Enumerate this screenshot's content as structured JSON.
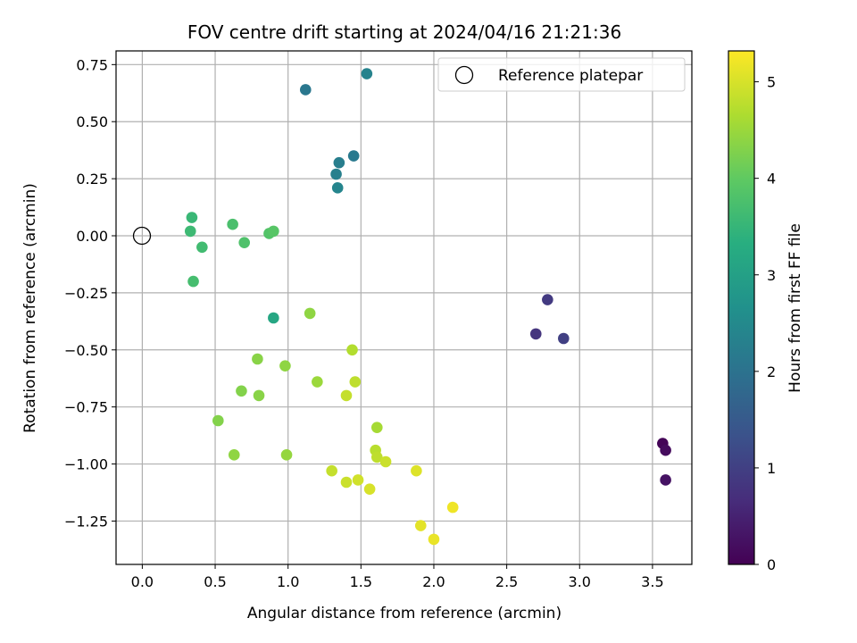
{
  "chart_data": {
    "type": "scatter",
    "title": "FOV centre drift starting at 2024/04/16 21:21:36",
    "xlabel": "Angular distance from reference (arcmin)",
    "ylabel": "Rotation from reference (arcmin)",
    "xlim": [
      -0.18,
      3.77
    ],
    "ylim": [
      -1.44,
      0.81
    ],
    "xticks": [
      0.0,
      0.5,
      1.0,
      1.5,
      2.0,
      2.5,
      3.0,
      3.5
    ],
    "xtick_labels": [
      "0.0",
      "0.5",
      "1.0",
      "1.5",
      "2.0",
      "2.5",
      "3.0",
      "3.5"
    ],
    "yticks": [
      0.75,
      0.5,
      0.25,
      0.0,
      -0.25,
      -0.5,
      -0.75,
      -1.0,
      -1.25
    ],
    "ytick_labels": [
      "0.75",
      "0.50",
      "0.25",
      "0.00",
      "−0.25",
      "−0.50",
      "−0.75",
      "−1.00",
      "−1.25"
    ],
    "grid": true,
    "legend": {
      "placement": "top-right",
      "entries": [
        "Reference platepar"
      ]
    },
    "reference_point": {
      "x": 0.0,
      "y": 0.0,
      "label": "Reference platepar"
    },
    "colorbar": {
      "label": "Hours from first FF file",
      "range": [
        0,
        5.32
      ],
      "ticks": [
        0,
        1,
        2,
        3,
        4,
        5
      ],
      "tick_labels": [
        "0",
        "1",
        "2",
        "3",
        "4",
        "5"
      ],
      "colormap": "viridis"
    },
    "series": [
      {
        "name": "FOV centre",
        "points": [
          {
            "x": 3.57,
            "y": -0.91,
            "c": 0.05
          },
          {
            "x": 3.59,
            "y": -0.94,
            "c": 0.15
          },
          {
            "x": 3.59,
            "y": -1.07,
            "c": 0.25
          },
          {
            "x": 2.7,
            "y": -0.43,
            "c": 0.8
          },
          {
            "x": 2.78,
            "y": -0.28,
            "c": 0.9
          },
          {
            "x": 2.89,
            "y": -0.45,
            "c": 1.0
          },
          {
            "x": 1.12,
            "y": 0.64,
            "c": 2.1
          },
          {
            "x": 1.54,
            "y": 0.71,
            "c": 2.35
          },
          {
            "x": 1.45,
            "y": 0.35,
            "c": 2.15
          },
          {
            "x": 1.35,
            "y": 0.32,
            "c": 2.25
          },
          {
            "x": 1.33,
            "y": 0.27,
            "c": 2.3
          },
          {
            "x": 1.34,
            "y": 0.21,
            "c": 2.4
          },
          {
            "x": 0.9,
            "y": -0.36,
            "c": 3.15
          },
          {
            "x": 0.34,
            "y": 0.08,
            "c": 3.55
          },
          {
            "x": 0.33,
            "y": 0.02,
            "c": 3.6
          },
          {
            "x": 0.41,
            "y": -0.05,
            "c": 3.65
          },
          {
            "x": 0.35,
            "y": -0.2,
            "c": 3.7
          },
          {
            "x": 0.62,
            "y": 0.05,
            "c": 3.75
          },
          {
            "x": 0.7,
            "y": -0.03,
            "c": 3.8
          },
          {
            "x": 0.87,
            "y": 0.01,
            "c": 3.85
          },
          {
            "x": 0.9,
            "y": 0.02,
            "c": 3.9
          },
          {
            "x": 1.15,
            "y": -0.34,
            "c": 4.4
          },
          {
            "x": 0.79,
            "y": -0.54,
            "c": 4.35
          },
          {
            "x": 0.98,
            "y": -0.57,
            "c": 4.4
          },
          {
            "x": 0.68,
            "y": -0.68,
            "c": 4.3
          },
          {
            "x": 0.8,
            "y": -0.7,
            "c": 4.35
          },
          {
            "x": 0.52,
            "y": -0.81,
            "c": 4.3
          },
          {
            "x": 0.63,
            "y": -0.96,
            "c": 4.4
          },
          {
            "x": 0.99,
            "y": -0.96,
            "c": 4.45
          },
          {
            "x": 1.2,
            "y": -0.64,
            "c": 4.5
          },
          {
            "x": 1.44,
            "y": -0.5,
            "c": 4.7
          },
          {
            "x": 1.46,
            "y": -0.64,
            "c": 4.8
          },
          {
            "x": 1.4,
            "y": -0.7,
            "c": 4.85
          },
          {
            "x": 1.61,
            "y": -0.84,
            "c": 4.6
          },
          {
            "x": 1.6,
            "y": -0.94,
            "c": 4.75
          },
          {
            "x": 1.61,
            "y": -0.97,
            "c": 4.8
          },
          {
            "x": 1.67,
            "y": -0.99,
            "c": 4.9
          },
          {
            "x": 1.3,
            "y": -1.03,
            "c": 4.85
          },
          {
            "x": 1.4,
            "y": -1.08,
            "c": 4.9
          },
          {
            "x": 1.48,
            "y": -1.07,
            "c": 4.95
          },
          {
            "x": 1.56,
            "y": -1.11,
            "c": 5.0
          },
          {
            "x": 1.88,
            "y": -1.03,
            "c": 5.05
          },
          {
            "x": 1.91,
            "y": -1.27,
            "c": 5.1
          },
          {
            "x": 2.0,
            "y": -1.33,
            "c": 5.15
          },
          {
            "x": 2.13,
            "y": -1.19,
            "c": 5.2
          }
        ]
      }
    ]
  }
}
